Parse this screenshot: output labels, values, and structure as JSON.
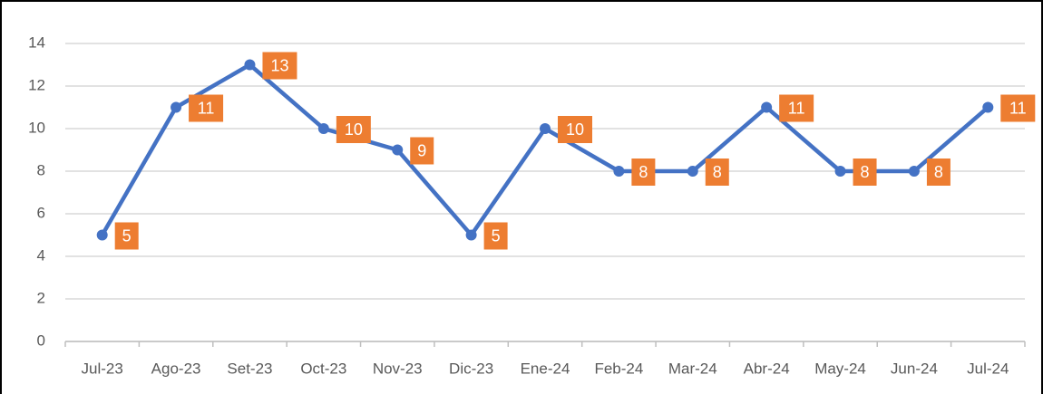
{
  "chart_data": {
    "type": "line",
    "categories": [
      "Jul-23",
      "Ago-23",
      "Set-23",
      "Oct-23",
      "Nov-23",
      "Dic-23",
      "Ene-24",
      "Feb-24",
      "Mar-24",
      "Abr-24",
      "May-24",
      "Jun-24",
      "Jul-24"
    ],
    "series": [
      {
        "name": null,
        "color": "#4472c4",
        "values": [
          5,
          11,
          13,
          10,
          9,
          5,
          10,
          8,
          8,
          11,
          8,
          8,
          11
        ]
      }
    ],
    "label_color": "#ed7d31",
    "ylim": [
      0,
      14
    ],
    "yticks": [
      0,
      2,
      4,
      6,
      8,
      10,
      12,
      14
    ],
    "grid": true
  }
}
